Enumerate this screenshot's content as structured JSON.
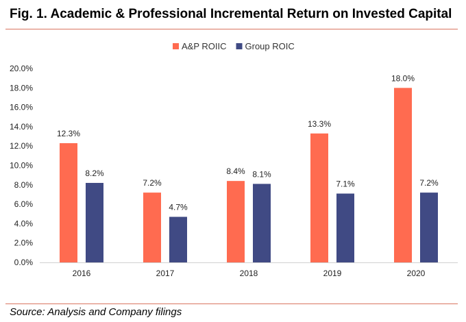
{
  "figure": {
    "title": "Fig. 1. Academic & Professional Incremental Return on Invested Capital",
    "source": "Source: Analysis and Company filings"
  },
  "chart_data": {
    "type": "bar",
    "categories": [
      "2016",
      "2017",
      "2018",
      "2019",
      "2020"
    ],
    "series": [
      {
        "name": "A&P ROIIC",
        "color": "#ff6b50",
        "values": [
          12.3,
          7.2,
          8.4,
          13.3,
          18.0
        ],
        "labels": [
          "12.3%",
          "7.2%",
          "8.4%",
          "13.3%",
          "18.0%"
        ]
      },
      {
        "name": "Group ROIC",
        "color": "#404a84",
        "values": [
          8.2,
          4.7,
          8.1,
          7.1,
          7.2
        ],
        "labels": [
          "8.2%",
          "4.7%",
          "8.1%",
          "7.1%",
          "7.2%"
        ]
      }
    ],
    "ylim": [
      0,
      20
    ],
    "yticks": [
      "0.0%",
      "2.0%",
      "4.0%",
      "6.0%",
      "8.0%",
      "10.0%",
      "12.0%",
      "14.0%",
      "16.0%",
      "18.0%",
      "20.0%"
    ],
    "xlabel": "",
    "ylabel": "",
    "legend": "top-center",
    "grid": false
  }
}
